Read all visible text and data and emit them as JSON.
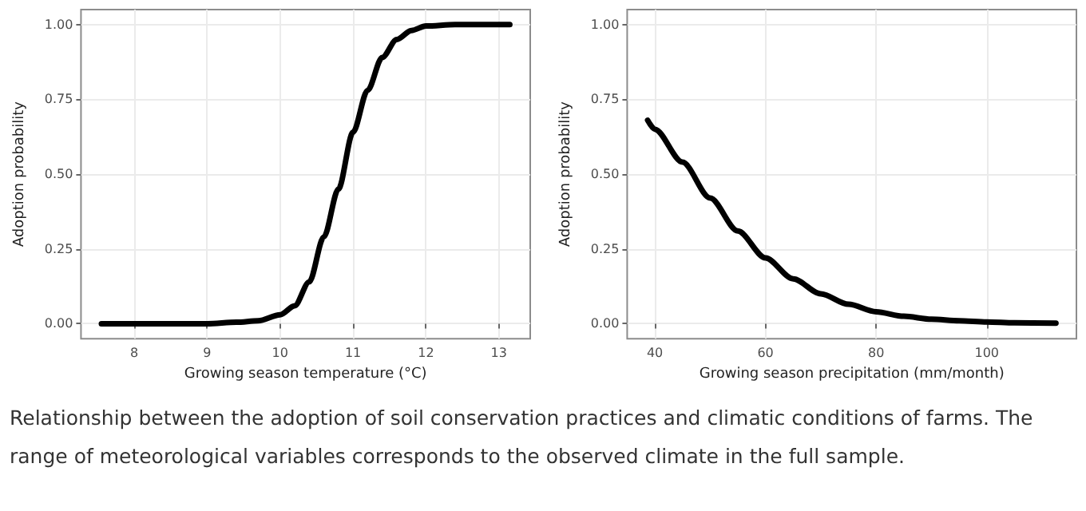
{
  "chart_data": [
    {
      "type": "line",
      "xlabel": "Growing season temperature (°C)",
      "ylabel": "Adoption probability",
      "xlim": [
        7.27,
        13.43
      ],
      "ylim": [
        -0.05,
        1.05
      ],
      "xticks": [
        8,
        9,
        10,
        11,
        12,
        13
      ],
      "yticks": [
        {
          "value": 0,
          "label": "0.00"
        },
        {
          "value": 0.25,
          "label": "0.25"
        },
        {
          "value": 0.5,
          "label": "0.50"
        },
        {
          "value": 0.75,
          "label": "0.75"
        },
        {
          "value": 1,
          "label": "1.00"
        }
      ],
      "grid": true,
      "marker": "none",
      "line_style": "solid",
      "series": [
        {
          "color": "#000000",
          "x": [
            7.55,
            8,
            8.5,
            9,
            9.4,
            9.7,
            10,
            10.2,
            10.4,
            10.6,
            10.8,
            11,
            11.2,
            11.4,
            11.6,
            11.8,
            12,
            12.4,
            13.15
          ],
          "values": [
            0,
            0,
            0,
            0,
            0.005,
            0.01,
            0.03,
            0.06,
            0.14,
            0.29,
            0.45,
            0.64,
            0.78,
            0.89,
            0.95,
            0.98,
            0.995,
            1,
            1
          ]
        }
      ],
      "annotations": [
        "Relationship between the adoption of soil conservation practices and climatic conditions of farms. The range of meteorological variables corresponds to the observed climate in the full sample."
      ]
    },
    {
      "type": "line",
      "xlabel": "Growing season precipitation (mm/month)",
      "ylabel": "Adoption probability",
      "xlim": [
        35.0,
        116.2
      ],
      "ylim": [
        -0.05,
        1.05
      ],
      "xticks": [
        40,
        60,
        80,
        100
      ],
      "yticks": [
        {
          "value": 0,
          "label": "0.00"
        },
        {
          "value": 0.25,
          "label": "0.25"
        },
        {
          "value": 0.5,
          "label": "0.50"
        },
        {
          "value": 0.75,
          "label": "0.75"
        },
        {
          "value": 1,
          "label": "1.00"
        }
      ],
      "grid": true,
      "marker": "none",
      "line_style": "solid",
      "series": [
        {
          "color": "#000000",
          "x": [
            38.7,
            40,
            45,
            50,
            55,
            60,
            65,
            70,
            75,
            80,
            85,
            90,
            95,
            100,
            105,
            112.5
          ],
          "values": [
            0.68,
            0.65,
            0.54,
            0.42,
            0.31,
            0.22,
            0.15,
            0.1,
            0.065,
            0.04,
            0.025,
            0.015,
            0.01,
            0.006,
            0.003,
            0.002
          ]
        }
      ]
    }
  ]
}
